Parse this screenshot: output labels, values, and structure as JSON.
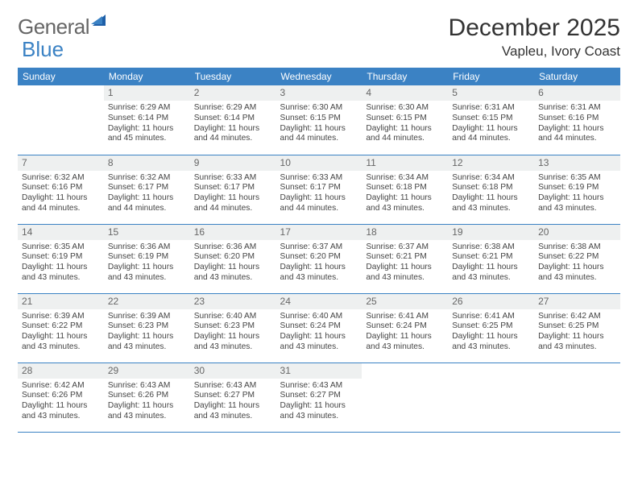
{
  "logo": {
    "text1": "General",
    "text2": "Blue"
  },
  "title": "December 2025",
  "location": "Vapleu, Ivory Coast",
  "colors": {
    "header_bg": "#3b82c4",
    "header_text": "#ffffff",
    "daynum_bg": "#eef0f0",
    "border": "#3b82c4",
    "body_text": "#444444",
    "logo_gray": "#666666",
    "logo_blue": "#3b82c4"
  },
  "typography": {
    "title_fontsize": 30,
    "location_fontsize": 17,
    "dayheader_fontsize": 12,
    "daynum_fontsize": 12,
    "cell_fontsize": 10.2
  },
  "day_headers": [
    "Sunday",
    "Monday",
    "Tuesday",
    "Wednesday",
    "Thursday",
    "Friday",
    "Saturday"
  ],
  "weeks": [
    [
      null,
      {
        "n": "1",
        "sunrise": "6:29 AM",
        "sunset": "6:14 PM",
        "daylight": "11 hours and 45 minutes."
      },
      {
        "n": "2",
        "sunrise": "6:29 AM",
        "sunset": "6:14 PM",
        "daylight": "11 hours and 44 minutes."
      },
      {
        "n": "3",
        "sunrise": "6:30 AM",
        "sunset": "6:15 PM",
        "daylight": "11 hours and 44 minutes."
      },
      {
        "n": "4",
        "sunrise": "6:30 AM",
        "sunset": "6:15 PM",
        "daylight": "11 hours and 44 minutes."
      },
      {
        "n": "5",
        "sunrise": "6:31 AM",
        "sunset": "6:15 PM",
        "daylight": "11 hours and 44 minutes."
      },
      {
        "n": "6",
        "sunrise": "6:31 AM",
        "sunset": "6:16 PM",
        "daylight": "11 hours and 44 minutes."
      }
    ],
    [
      {
        "n": "7",
        "sunrise": "6:32 AM",
        "sunset": "6:16 PM",
        "daylight": "11 hours and 44 minutes."
      },
      {
        "n": "8",
        "sunrise": "6:32 AM",
        "sunset": "6:17 PM",
        "daylight": "11 hours and 44 minutes."
      },
      {
        "n": "9",
        "sunrise": "6:33 AM",
        "sunset": "6:17 PM",
        "daylight": "11 hours and 44 minutes."
      },
      {
        "n": "10",
        "sunrise": "6:33 AM",
        "sunset": "6:17 PM",
        "daylight": "11 hours and 44 minutes."
      },
      {
        "n": "11",
        "sunrise": "6:34 AM",
        "sunset": "6:18 PM",
        "daylight": "11 hours and 43 minutes."
      },
      {
        "n": "12",
        "sunrise": "6:34 AM",
        "sunset": "6:18 PM",
        "daylight": "11 hours and 43 minutes."
      },
      {
        "n": "13",
        "sunrise": "6:35 AM",
        "sunset": "6:19 PM",
        "daylight": "11 hours and 43 minutes."
      }
    ],
    [
      {
        "n": "14",
        "sunrise": "6:35 AM",
        "sunset": "6:19 PM",
        "daylight": "11 hours and 43 minutes."
      },
      {
        "n": "15",
        "sunrise": "6:36 AM",
        "sunset": "6:19 PM",
        "daylight": "11 hours and 43 minutes."
      },
      {
        "n": "16",
        "sunrise": "6:36 AM",
        "sunset": "6:20 PM",
        "daylight": "11 hours and 43 minutes."
      },
      {
        "n": "17",
        "sunrise": "6:37 AM",
        "sunset": "6:20 PM",
        "daylight": "11 hours and 43 minutes."
      },
      {
        "n": "18",
        "sunrise": "6:37 AM",
        "sunset": "6:21 PM",
        "daylight": "11 hours and 43 minutes."
      },
      {
        "n": "19",
        "sunrise": "6:38 AM",
        "sunset": "6:21 PM",
        "daylight": "11 hours and 43 minutes."
      },
      {
        "n": "20",
        "sunrise": "6:38 AM",
        "sunset": "6:22 PM",
        "daylight": "11 hours and 43 minutes."
      }
    ],
    [
      {
        "n": "21",
        "sunrise": "6:39 AM",
        "sunset": "6:22 PM",
        "daylight": "11 hours and 43 minutes."
      },
      {
        "n": "22",
        "sunrise": "6:39 AM",
        "sunset": "6:23 PM",
        "daylight": "11 hours and 43 minutes."
      },
      {
        "n": "23",
        "sunrise": "6:40 AM",
        "sunset": "6:23 PM",
        "daylight": "11 hours and 43 minutes."
      },
      {
        "n": "24",
        "sunrise": "6:40 AM",
        "sunset": "6:24 PM",
        "daylight": "11 hours and 43 minutes."
      },
      {
        "n": "25",
        "sunrise": "6:41 AM",
        "sunset": "6:24 PM",
        "daylight": "11 hours and 43 minutes."
      },
      {
        "n": "26",
        "sunrise": "6:41 AM",
        "sunset": "6:25 PM",
        "daylight": "11 hours and 43 minutes."
      },
      {
        "n": "27",
        "sunrise": "6:42 AM",
        "sunset": "6:25 PM",
        "daylight": "11 hours and 43 minutes."
      }
    ],
    [
      {
        "n": "28",
        "sunrise": "6:42 AM",
        "sunset": "6:26 PM",
        "daylight": "11 hours and 43 minutes."
      },
      {
        "n": "29",
        "sunrise": "6:43 AM",
        "sunset": "6:26 PM",
        "daylight": "11 hours and 43 minutes."
      },
      {
        "n": "30",
        "sunrise": "6:43 AM",
        "sunset": "6:27 PM",
        "daylight": "11 hours and 43 minutes."
      },
      {
        "n": "31",
        "sunrise": "6:43 AM",
        "sunset": "6:27 PM",
        "daylight": "11 hours and 43 minutes."
      },
      null,
      null,
      null
    ]
  ],
  "labels": {
    "sunrise": "Sunrise: ",
    "sunset": "Sunset: ",
    "daylight": "Daylight: "
  }
}
